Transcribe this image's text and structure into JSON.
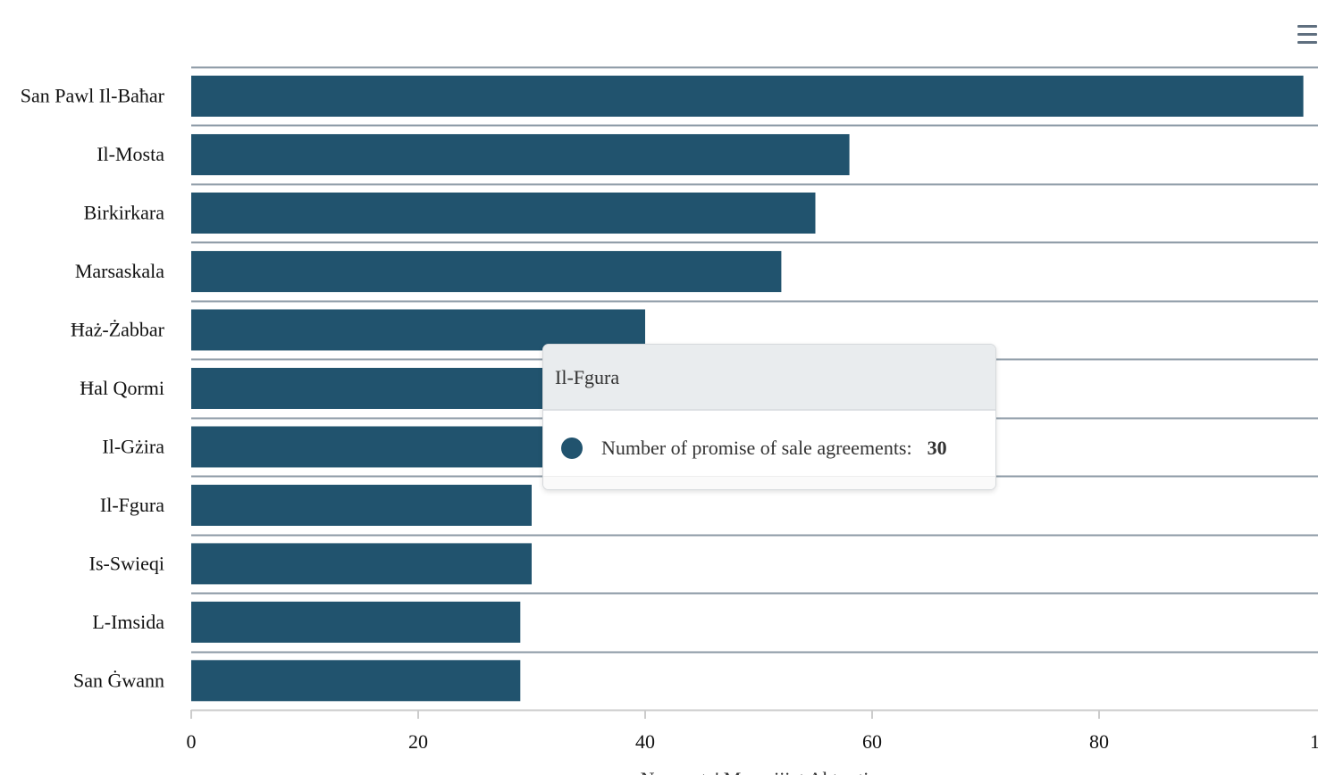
{
  "chart_data": {
    "type": "bar",
    "orientation": "horizontal",
    "categories": [
      "San Pawl Il-Baħar",
      "Il-Mosta",
      "Birkirkara",
      "Marsaskala",
      "Ħaż-Żabbar",
      "Ħal Qormi",
      "Il-Gżira",
      "Il-Fgura",
      "Is-Swieqi",
      "L-Imsida",
      "San Ġwann"
    ],
    "series": [
      {
        "name": "Number of promise of sale agreements",
        "values": [
          98,
          58,
          55,
          52,
          40,
          31,
          31,
          30,
          30,
          29,
          29
        ],
        "color": "#21536e"
      }
    ],
    "xlim": [
      0,
      100
    ],
    "x_ticks": [
      "0",
      "20",
      "40",
      "60",
      "80",
      "1"
    ],
    "xlabel": "Numru ta' Muwejjiet Aktar tiv",
    "grid": true
  },
  "tooltip": {
    "title": "Il-Fgura",
    "series_label": "Number of promise of sale agreements:",
    "value": "30",
    "dot_color": "#21536e"
  },
  "menu": {
    "icon": "hamburger-menu-icon"
  }
}
